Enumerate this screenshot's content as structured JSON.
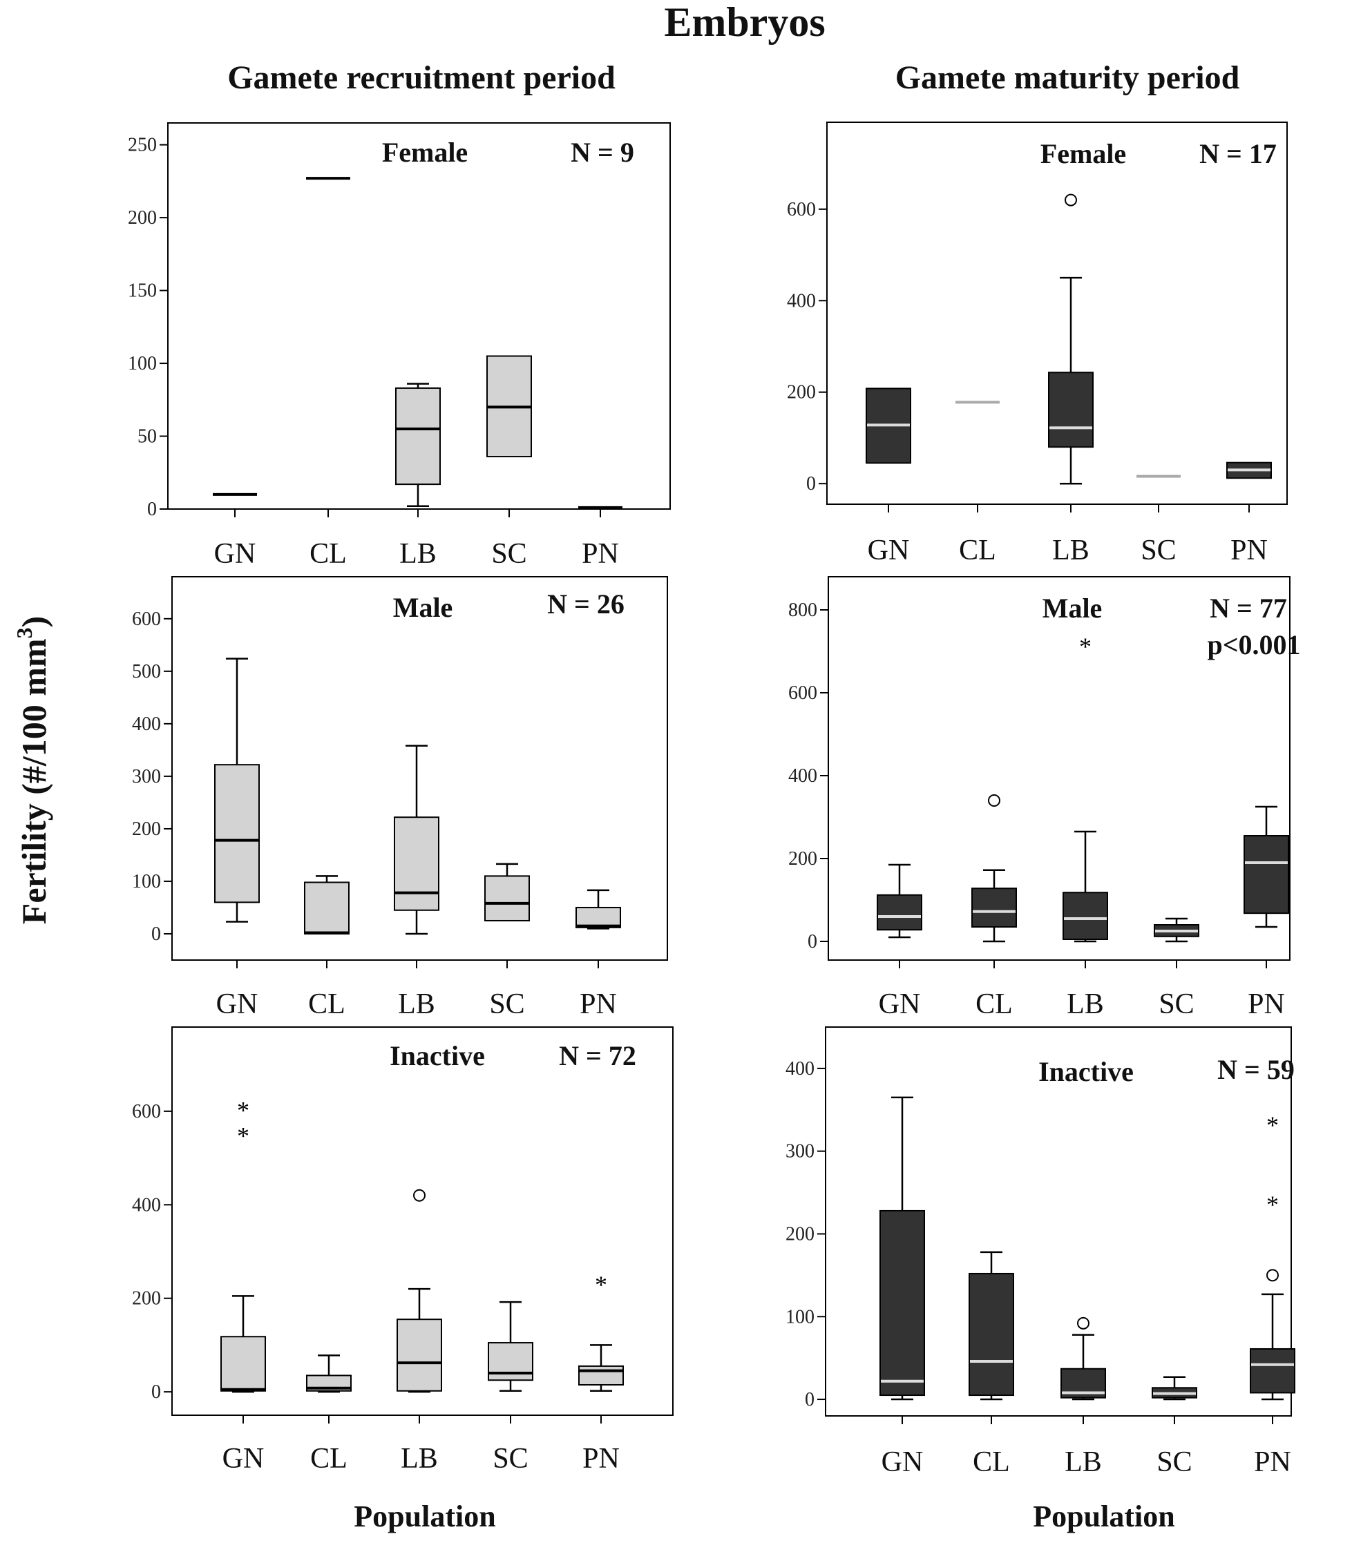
{
  "figure": {
    "title": "Embryos",
    "column_titles": [
      "Gamete recruitment period",
      "Gamete maturity period"
    ],
    "ylabel": "Fertility (#/100 mm",
    "ylabel_sup": "3",
    "ylabel_close": ")",
    "xlabel": "Population"
  },
  "colors": {
    "light_box": "#d3d3d3",
    "dark_box": "#333333",
    "axis": "#000000"
  },
  "chart_data": [
    {
      "id": "recruitment-female",
      "type": "box",
      "period": "Gamete recruitment period",
      "label": "Female",
      "n_label": "N = 9",
      "p_label": "",
      "ylim": [
        0,
        265
      ],
      "ticks": [
        0,
        50,
        100,
        150,
        200,
        250
      ],
      "box_color": "#d3d3d3",
      "median_color": "#000000",
      "categories": [
        "GN",
        "CL",
        "LB",
        "SC",
        "PN"
      ],
      "boxes": [
        {
          "cat": "GN",
          "lo": null,
          "q1": null,
          "med": 10,
          "q3": null,
          "hi": null
        },
        {
          "cat": "CL",
          "lo": null,
          "q1": null,
          "med": 227,
          "q3": null,
          "hi": null
        },
        {
          "cat": "LB",
          "lo": 2,
          "q1": 17,
          "med": 55,
          "q3": 83,
          "hi": 86
        },
        {
          "cat": "SC",
          "lo": null,
          "q1": 36,
          "med": 70,
          "q3": 105,
          "hi": null
        },
        {
          "cat": "PN",
          "lo": null,
          "q1": null,
          "med": 1,
          "q3": null,
          "hi": null
        }
      ],
      "outliers": []
    },
    {
      "id": "maturity-female",
      "type": "box",
      "period": "Gamete maturity period",
      "label": "Female",
      "n_label": "N = 17",
      "p_label": "",
      "ylim": [
        -45,
        790
      ],
      "ticks": [
        0,
        200,
        400,
        600
      ],
      "box_color": "#333333",
      "median_color": "#dddddd",
      "categories": [
        "GN",
        "CL",
        "LB",
        "SC",
        "PN"
      ],
      "boxes": [
        {
          "cat": "GN",
          "lo": null,
          "q1": 45,
          "med": 128,
          "q3": 208,
          "hi": null
        },
        {
          "cat": "CL",
          "lo": null,
          "q1": null,
          "med": 178,
          "q3": null,
          "hi": null
        },
        {
          "cat": "LB",
          "lo": 0,
          "q1": 80,
          "med": 122,
          "q3": 243,
          "hi": 450
        },
        {
          "cat": "SC",
          "lo": null,
          "q1": null,
          "med": 16,
          "q3": null,
          "hi": null
        },
        {
          "cat": "PN",
          "lo": null,
          "q1": 12,
          "med": 30,
          "q3": 46,
          "hi": null
        }
      ],
      "outliers": [
        {
          "cat": "LB",
          "value": 620,
          "kind": "circle"
        }
      ]
    },
    {
      "id": "recruitment-male",
      "type": "box",
      "period": "Gamete recruitment period",
      "label": "Male",
      "n_label": "N = 26",
      "p_label": "",
      "ylim": [
        -50,
        680
      ],
      "ticks": [
        0,
        100,
        200,
        300,
        400,
        500,
        600
      ],
      "box_color": "#d3d3d3",
      "median_color": "#000000",
      "categories": [
        "GN",
        "CL",
        "LB",
        "SC",
        "PN"
      ],
      "boxes": [
        {
          "cat": "GN",
          "lo": 23,
          "q1": 60,
          "med": 178,
          "q3": 322,
          "hi": 524
        },
        {
          "cat": "CL",
          "lo": null,
          "q1": 0,
          "med": 2,
          "q3": 98,
          "hi": 110
        },
        {
          "cat": "LB",
          "lo": 0,
          "q1": 45,
          "med": 78,
          "q3": 222,
          "hi": 358
        },
        {
          "cat": "SC",
          "lo": 25,
          "q1": 25,
          "med": 58,
          "q3": 110,
          "hi": 133
        },
        {
          "cat": "PN",
          "lo": 10,
          "q1": 12,
          "med": 15,
          "q3": 50,
          "hi": 83
        }
      ],
      "outliers": []
    },
    {
      "id": "maturity-male",
      "type": "box",
      "period": "Gamete maturity period",
      "label": "Male",
      "n_label": "N = 77",
      "p_label": "p<0.001",
      "ylim": [
        -45,
        880
      ],
      "ticks": [
        0,
        200,
        400,
        600,
        800
      ],
      "box_color": "#333333",
      "median_color": "#dddddd",
      "categories": [
        "GN",
        "CL",
        "LB",
        "SC",
        "PN"
      ],
      "boxes": [
        {
          "cat": "GN",
          "lo": 10,
          "q1": 28,
          "med": 60,
          "q3": 112,
          "hi": 185
        },
        {
          "cat": "CL",
          "lo": 0,
          "q1": 35,
          "med": 72,
          "q3": 128,
          "hi": 172
        },
        {
          "cat": "LB",
          "lo": 0,
          "q1": 5,
          "med": 55,
          "q3": 118,
          "hi": 265
        },
        {
          "cat": "SC",
          "lo": 0,
          "q1": 12,
          "med": 25,
          "q3": 40,
          "hi": 55
        },
        {
          "cat": "PN",
          "lo": 35,
          "q1": 68,
          "med": 190,
          "q3": 255,
          "hi": 325
        }
      ],
      "outliers": [
        {
          "cat": "CL",
          "value": 340,
          "kind": "circle"
        },
        {
          "cat": "LB",
          "value": 715,
          "kind": "star"
        }
      ]
    },
    {
      "id": "recruitment-inactive",
      "type": "box",
      "period": "Gamete recruitment period",
      "label": "Inactive",
      "n_label": "N = 72",
      "p_label": "",
      "ylim": [
        -50,
        780
      ],
      "ticks": [
        0,
        200,
        400,
        600
      ],
      "box_color": "#d3d3d3",
      "median_color": "#000000",
      "categories": [
        "GN",
        "CL",
        "LB",
        "SC",
        "PN"
      ],
      "boxes": [
        {
          "cat": "GN",
          "lo": 0,
          "q1": 2,
          "med": 5,
          "q3": 118,
          "hi": 205
        },
        {
          "cat": "CL",
          "lo": 0,
          "q1": 2,
          "med": 8,
          "q3": 35,
          "hi": 78
        },
        {
          "cat": "LB",
          "lo": 0,
          "q1": 2,
          "med": 62,
          "q3": 155,
          "hi": 220
        },
        {
          "cat": "SC",
          "lo": 2,
          "q1": 25,
          "med": 40,
          "q3": 105,
          "hi": 192
        },
        {
          "cat": "PN",
          "lo": 2,
          "q1": 15,
          "med": 45,
          "q3": 55,
          "hi": 100
        }
      ],
      "outliers": [
        {
          "cat": "GN",
          "value": 605,
          "kind": "star"
        },
        {
          "cat": "GN",
          "value": 550,
          "kind": "star"
        },
        {
          "cat": "LB",
          "value": 420,
          "kind": "circle"
        },
        {
          "cat": "PN",
          "value": 232,
          "kind": "star"
        }
      ]
    },
    {
      "id": "maturity-inactive",
      "type": "box",
      "period": "Gamete maturity period",
      "label": "Inactive",
      "n_label": "N = 59",
      "p_label": "",
      "ylim": [
        -20,
        450
      ],
      "ticks": [
        0,
        100,
        200,
        300,
        400
      ],
      "box_color": "#333333",
      "median_color": "#dddddd",
      "categories": [
        "GN",
        "CL",
        "LB",
        "SC",
        "PN"
      ],
      "boxes": [
        {
          "cat": "GN",
          "lo": 0,
          "q1": 5,
          "med": 22,
          "q3": 228,
          "hi": 365
        },
        {
          "cat": "CL",
          "lo": 0,
          "q1": 5,
          "med": 46,
          "q3": 152,
          "hi": 178
        },
        {
          "cat": "LB",
          "lo": 0,
          "q1": 2,
          "med": 8,
          "q3": 37,
          "hi": 78
        },
        {
          "cat": "SC",
          "lo": 0,
          "q1": 2,
          "med": 7,
          "q3": 14,
          "hi": 27
        },
        {
          "cat": "PN",
          "lo": 0,
          "q1": 8,
          "med": 42,
          "q3": 61,
          "hi": 127
        }
      ],
      "outliers": [
        {
          "cat": "LB",
          "value": 92,
          "kind": "circle"
        },
        {
          "cat": "PN",
          "value": 150,
          "kind": "circle"
        },
        {
          "cat": "PN",
          "value": 237,
          "kind": "star"
        },
        {
          "cat": "PN",
          "value": 333,
          "kind": "star"
        }
      ]
    }
  ]
}
